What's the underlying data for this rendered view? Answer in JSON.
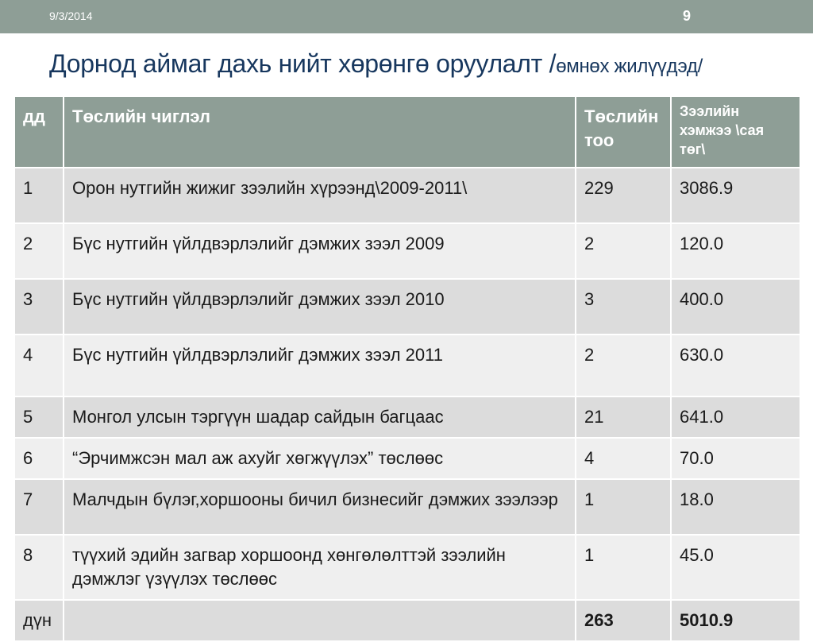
{
  "header": {
    "date": "9/3/2014",
    "page_number": "9"
  },
  "title": {
    "main": "Дорнод аймаг дахь нийт хөрөнгө оруулалт /",
    "sub": "өмнөх жилүүдэд/"
  },
  "table": {
    "headers": [
      "дд",
      "Төслийн чиглэл",
      "Төслийн тоо",
      "Зээлийн хэмжээ \\сая төг\\"
    ],
    "rows": [
      [
        "1",
        "Орон нутгийн жижиг зээлийн хүрээнд\\2009-2011\\",
        "229",
        "3086.9"
      ],
      [
        "2",
        "Бүс нутгийн үйлдвэрлэлийг дэмжих зээл 2009",
        "2",
        "120.0"
      ],
      [
        "3",
        "Бүс нутгийн үйлдвэрлэлийг дэмжих зээл 2010",
        "3",
        "400.0"
      ],
      [
        "4",
        "Бүс нутгийн үйлдвэрлэлийг дэмжих зээл 2011",
        "2",
        "630.0"
      ],
      [
        "5",
        "Монгол улсын тэргүүн шадар сайдын багцаас",
        "21",
        "641.0"
      ],
      [
        "6",
        "“Эрчимжсэн мал аж ахуйг хөгжүүлэх” төслөөс",
        "4",
        "70.0"
      ],
      [
        "7",
        "Малчдын бүлэг,хоршооны бичил бизнесийг дэмжих зээлээр",
        "1",
        "18.0"
      ],
      [
        "8",
        " түүхий эдийн загвар хоршоонд хөнгөлөлттэй зээлийн дэмжлэг үзүүлэх төслөөс",
        "1",
        "45.0"
      ]
    ],
    "total": {
      "label": "дүн",
      "count": "263",
      "amount": "5010.9"
    }
  }
}
